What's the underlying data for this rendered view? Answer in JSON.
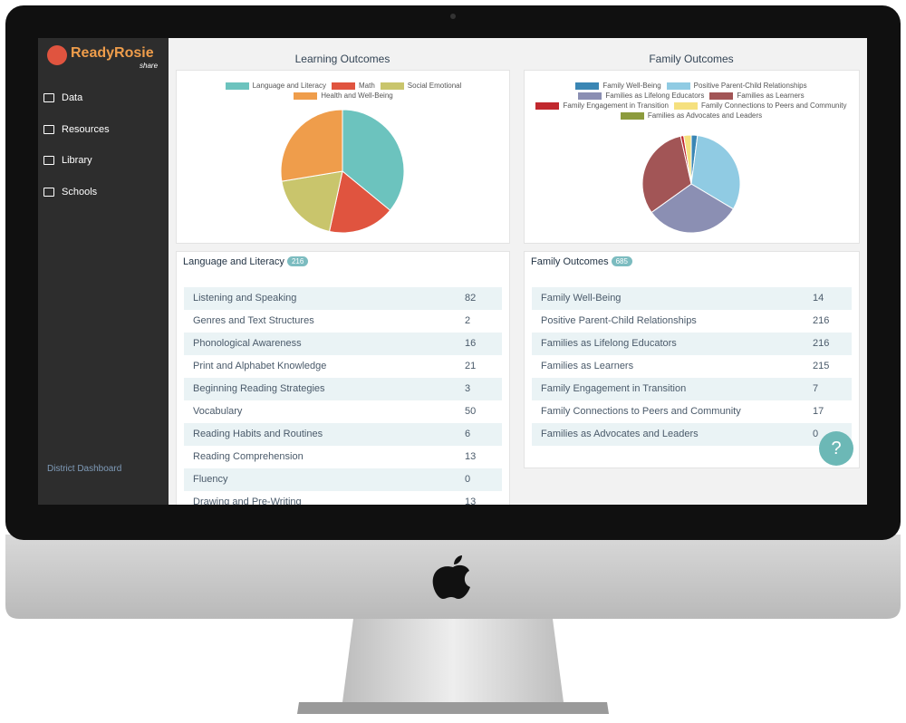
{
  "sidebar": {
    "logo": "ReadyRosie",
    "logo_sub": "share",
    "nav": [
      "Data",
      "Resources",
      "Library",
      "Schools"
    ],
    "footer": "District Dashboard"
  },
  "chart_data": [
    {
      "type": "pie",
      "title": "Learning Outcomes",
      "categories": [
        "Language and Literacy",
        "Math",
        "Social Emotional",
        "Health and Well-Being"
      ],
      "values": [
        216,
        105,
        114,
        166
      ],
      "colors": [
        "#6cc3be",
        "#e0543f",
        "#c9c56c",
        "#ef9d4b"
      ]
    },
    {
      "type": "pie",
      "title": "Family Outcomes",
      "categories": [
        "Family Well-Being",
        "Positive Parent-Child Relationships",
        "Families as Lifelong Educators",
        "Families as Learners",
        "Family Engagement in Transition",
        "Family Connections to Peers and Community",
        "Families as Advocates and Leaders"
      ],
      "values": [
        14,
        216,
        216,
        215,
        7,
        17,
        0
      ],
      "colors": [
        "#3a86b4",
        "#90cbe3",
        "#8b8fb3",
        "#a25556",
        "#c1282e",
        "#f5e07e",
        "#8c9b3d"
      ]
    }
  ],
  "learning_table": {
    "title": "Language and Literacy",
    "badge": "216",
    "rows": [
      [
        "Listening and Speaking",
        "82"
      ],
      [
        "Genres and Text Structures",
        "2"
      ],
      [
        "Phonological Awareness",
        "16"
      ],
      [
        "Print and Alphabet Knowledge",
        "21"
      ],
      [
        "Beginning Reading Strategies",
        "3"
      ],
      [
        "Vocabulary",
        "50"
      ],
      [
        "Reading Habits and Routines",
        "6"
      ],
      [
        "Reading Comprehension",
        "13"
      ],
      [
        "Fluency",
        "0"
      ],
      [
        "Drawing and Pre-Writing",
        "13"
      ]
    ]
  },
  "family_table": {
    "title": "Family Outcomes",
    "badge": "685"
  },
  "help_button": "?"
}
